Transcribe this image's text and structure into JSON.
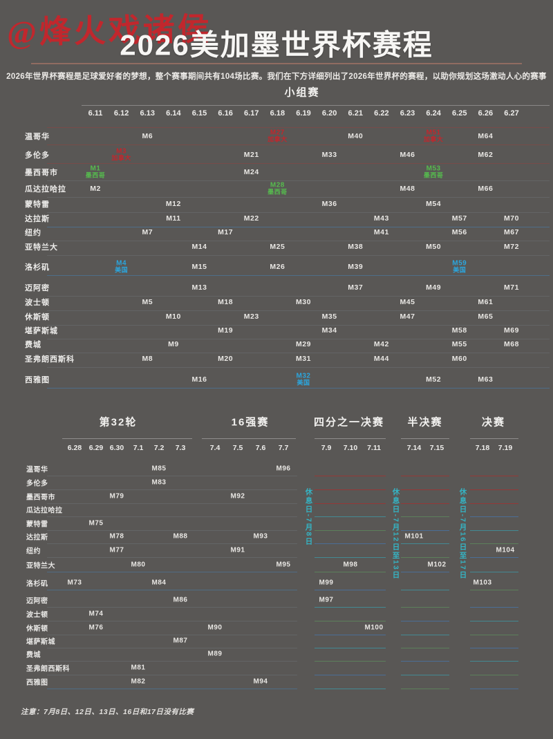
{
  "page": {
    "watermark": "@烽火戏诸侯",
    "title": "2026美加墨世界杯赛程",
    "subtitle": "2026年世界杯赛程是足球爱好者的梦想，整个赛事期间共有104场比赛。我们在下方详细列出了2026年世界杯的赛程，以助你规划这场激动人心的赛事",
    "footnote": "注意：7月8日、12日、13日、16日和17日没有比赛"
  },
  "colors": {
    "background": "#595755",
    "accent_red": "#c1272d",
    "host_green": "#56bb4e",
    "host_blue": "#2ba6de",
    "rest_teal": "#35b4c4",
    "text": "#eeedeb"
  },
  "chart_data": {
    "type": "table",
    "title": "2026美加墨世界杯赛程",
    "total_matches": 104,
    "host_legend": {
      "green": "墨西哥",
      "blue": "美国",
      "red": "加拿大"
    },
    "cities": [
      "温哥华",
      "多伦多",
      "墨西哥市",
      "瓜达拉哈拉",
      "蒙特雷",
      "达拉斯",
      "纽约",
      "亚特兰大",
      "洛杉矶",
      "迈阿密",
      "波士顿",
      "休斯顿",
      "堪萨斯城",
      "费城",
      "圣弗朗西斯科",
      "西雅图"
    ],
    "rest_days": [
      "休息日-7月8日",
      "休息日-7月12日至13日",
      "休息日-7月16日至17日"
    ],
    "stages": [
      {
        "name": "小组赛",
        "dates": [
          "6.11",
          "6.12",
          "6.13",
          "6.14",
          "6.15",
          "6.16",
          "6.17",
          "6.18",
          "6.19",
          "6.20",
          "6.21",
          "6.22",
          "6.23",
          "6.24",
          "6.25",
          "6.26",
          "6.27"
        ],
        "matches": [
          {
            "m": "M6",
            "city": "温哥华",
            "date": "6.13"
          },
          {
            "m": "M27",
            "city": "温哥华",
            "date": "6.18",
            "host": "加拿大",
            "hostColor": "red"
          },
          {
            "m": "M40",
            "city": "温哥华",
            "date": "6.21"
          },
          {
            "m": "M51",
            "city": "温哥华",
            "date": "6.24",
            "host": "加拿大",
            "hostColor": "red"
          },
          {
            "m": "M64",
            "city": "温哥华",
            "date": "6.26"
          },
          {
            "m": "M3",
            "city": "多伦多",
            "date": "6.12",
            "host": "加拿大",
            "hostColor": "red"
          },
          {
            "m": "M21",
            "city": "多伦多",
            "date": "6.17"
          },
          {
            "m": "M33",
            "city": "多伦多",
            "date": "6.20"
          },
          {
            "m": "M46",
            "city": "多伦多",
            "date": "6.23"
          },
          {
            "m": "M62",
            "city": "多伦多",
            "date": "6.26"
          },
          {
            "m": "M1",
            "city": "墨西哥市",
            "date": "6.11",
            "host": "墨西哥",
            "hostColor": "green"
          },
          {
            "m": "M24",
            "city": "墨西哥市",
            "date": "6.17"
          },
          {
            "m": "M53",
            "city": "墨西哥市",
            "date": "6.24",
            "host": "墨西哥",
            "hostColor": "green"
          },
          {
            "m": "M2",
            "city": "瓜达拉哈拉",
            "date": "6.11"
          },
          {
            "m": "M28",
            "city": "瓜达拉哈拉",
            "date": "6.18",
            "host": "墨西哥",
            "hostColor": "green"
          },
          {
            "m": "M48",
            "city": "瓜达拉哈拉",
            "date": "6.23"
          },
          {
            "m": "M66",
            "city": "瓜达拉哈拉",
            "date": "6.26"
          },
          {
            "m": "M12",
            "city": "蒙特雷",
            "date": "6.14"
          },
          {
            "m": "M36",
            "city": "蒙特雷",
            "date": "6.20"
          },
          {
            "m": "M54",
            "city": "蒙特雷",
            "date": "6.24"
          },
          {
            "m": "M11",
            "city": "达拉斯",
            "date": "6.14"
          },
          {
            "m": "M22",
            "city": "达拉斯",
            "date": "6.17"
          },
          {
            "m": "M43",
            "city": "达拉斯",
            "date": "6.22"
          },
          {
            "m": "M57",
            "city": "达拉斯",
            "date": "6.25"
          },
          {
            "m": "M70",
            "city": "达拉斯",
            "date": "6.27"
          },
          {
            "m": "M7",
            "city": "纽约",
            "date": "6.13"
          },
          {
            "m": "M17",
            "city": "纽约",
            "date": "6.16"
          },
          {
            "m": "M41",
            "city": "纽约",
            "date": "6.22"
          },
          {
            "m": "M56",
            "city": "纽约",
            "date": "6.25"
          },
          {
            "m": "M67",
            "city": "纽约",
            "date": "6.27"
          },
          {
            "m": "M14",
            "city": "亚特兰大",
            "date": "6.15"
          },
          {
            "m": "M25",
            "city": "亚特兰大",
            "date": "6.18"
          },
          {
            "m": "M38",
            "city": "亚特兰大",
            "date": "6.21"
          },
          {
            "m": "M50",
            "city": "亚特兰大",
            "date": "6.24"
          },
          {
            "m": "M72",
            "city": "亚特兰大",
            "date": "6.27"
          },
          {
            "m": "M4",
            "city": "洛杉矶",
            "date": "6.12",
            "host": "美国",
            "hostColor": "blue"
          },
          {
            "m": "M15",
            "city": "洛杉矶",
            "date": "6.15"
          },
          {
            "m": "M26",
            "city": "洛杉矶",
            "date": "6.18"
          },
          {
            "m": "M39",
            "city": "洛杉矶",
            "date": "6.21"
          },
          {
            "m": "M59",
            "city": "洛杉矶",
            "date": "6.25",
            "host": "美国",
            "hostColor": "blue"
          },
          {
            "m": "M13",
            "city": "迈阿密",
            "date": "6.15"
          },
          {
            "m": "M37",
            "city": "迈阿密",
            "date": "6.21"
          },
          {
            "m": "M49",
            "city": "迈阿密",
            "date": "6.24"
          },
          {
            "m": "M71",
            "city": "迈阿密",
            "date": "6.27"
          },
          {
            "m": "M5",
            "city": "波士顿",
            "date": "6.13"
          },
          {
            "m": "M18",
            "city": "波士顿",
            "date": "6.16"
          },
          {
            "m": "M30",
            "city": "波士顿",
            "date": "6.19"
          },
          {
            "m": "M45",
            "city": "波士顿",
            "date": "6.23"
          },
          {
            "m": "M61",
            "city": "波士顿",
            "date": "6.26"
          },
          {
            "m": "M10",
            "city": "休斯顿",
            "date": "6.14"
          },
          {
            "m": "M23",
            "city": "休斯顿",
            "date": "6.17"
          },
          {
            "m": "M35",
            "city": "休斯顿",
            "date": "6.20"
          },
          {
            "m": "M47",
            "city": "休斯顿",
            "date": "6.23"
          },
          {
            "m": "M65",
            "city": "休斯顿",
            "date": "6.26"
          },
          {
            "m": "M19",
            "city": "堪萨斯城",
            "date": "6.16"
          },
          {
            "m": "M34",
            "city": "堪萨斯城",
            "date": "6.20"
          },
          {
            "m": "M58",
            "city": "堪萨斯城",
            "date": "6.25"
          },
          {
            "m": "M69",
            "city": "堪萨斯城",
            "date": "6.27"
          },
          {
            "m": "M9",
            "city": "费城",
            "date": "6.14"
          },
          {
            "m": "M29",
            "city": "费城",
            "date": "6.19"
          },
          {
            "m": "M42",
            "city": "费城",
            "date": "6.22"
          },
          {
            "m": "M55",
            "city": "费城",
            "date": "6.25"
          },
          {
            "m": "M68",
            "city": "费城",
            "date": "6.27"
          },
          {
            "m": "M8",
            "city": "圣弗朗西斯科",
            "date": "6.13"
          },
          {
            "m": "M20",
            "city": "圣弗朗西斯科",
            "date": "6.16"
          },
          {
            "m": "M31",
            "city": "圣弗朗西斯科",
            "date": "6.19"
          },
          {
            "m": "M44",
            "city": "圣弗朗西斯科",
            "date": "6.22"
          },
          {
            "m": "M60",
            "city": "圣弗朗西斯科",
            "date": "6.25"
          },
          {
            "m": "M16",
            "city": "西雅图",
            "date": "6.15"
          },
          {
            "m": "M32",
            "city": "西雅图",
            "date": "6.19",
            "host": "美国",
            "hostColor": "blue"
          },
          {
            "m": "M52",
            "city": "西雅图",
            "date": "6.24"
          },
          {
            "m": "M63",
            "city": "西雅图",
            "date": "6.26"
          }
        ]
      },
      {
        "name": "第32轮",
        "dates": [
          "6.28",
          "6.29",
          "6.30",
          "7.1",
          "7.2",
          "7.3"
        ],
        "matches": [
          {
            "m": "M73",
            "city": "洛杉矶",
            "date": "6.28"
          },
          {
            "m": "M74",
            "city": "波士顿",
            "date": "6.29"
          },
          {
            "m": "M75",
            "city": "蒙特雷",
            "date": "6.29"
          },
          {
            "m": "M76",
            "city": "休斯顿",
            "date": "6.29"
          },
          {
            "m": "M77",
            "city": "纽约",
            "date": "6.30"
          },
          {
            "m": "M78",
            "city": "达拉斯",
            "date": "6.30"
          },
          {
            "m": "M79",
            "city": "墨西哥市",
            "date": "6.30"
          },
          {
            "m": "M80",
            "city": "亚特兰大",
            "date": "7.1"
          },
          {
            "m": "M81",
            "city": "圣弗朗西斯科",
            "date": "7.1"
          },
          {
            "m": "M82",
            "city": "西雅图",
            "date": "7.1"
          },
          {
            "m": "M83",
            "city": "多伦多",
            "date": "7.2"
          },
          {
            "m": "M84",
            "city": "洛杉矶",
            "date": "7.2"
          },
          {
            "m": "M85",
            "city": "温哥华",
            "date": "7.2"
          },
          {
            "m": "M86",
            "city": "迈阿密",
            "date": "7.3"
          },
          {
            "m": "M87",
            "city": "堪萨斯城",
            "date": "7.3"
          },
          {
            "m": "M88",
            "city": "达拉斯",
            "date": "7.3"
          }
        ]
      },
      {
        "name": "16强赛",
        "dates": [
          "7.4",
          "7.5",
          "7.6",
          "7.7"
        ],
        "matches": [
          {
            "m": "M89",
            "city": "费城",
            "date": "7.4"
          },
          {
            "m": "M90",
            "city": "休斯顿",
            "date": "7.4"
          },
          {
            "m": "M91",
            "city": "纽约",
            "date": "7.5"
          },
          {
            "m": "M92",
            "city": "墨西哥市",
            "date": "7.5"
          },
          {
            "m": "M93",
            "city": "达拉斯",
            "date": "7.6"
          },
          {
            "m": "M94",
            "city": "西雅图",
            "date": "7.6"
          },
          {
            "m": "M95",
            "city": "亚特兰大",
            "date": "7.7"
          },
          {
            "m": "M96",
            "city": "温哥华",
            "date": "7.7"
          }
        ]
      },
      {
        "name": "四分之一决赛",
        "dates": [
          "7.9",
          "7.10",
          "7.11"
        ],
        "matches": [
          {
            "m": "M97",
            "city": "迈阿密",
            "date": "7.9"
          },
          {
            "m": "M99",
            "city": "洛杉矶",
            "date": "7.9"
          },
          {
            "m": "M98",
            "city": "亚特兰大",
            "date": "7.10"
          },
          {
            "m": "M100",
            "city": "休斯顿",
            "date": "7.11"
          }
        ]
      },
      {
        "name": "半决赛",
        "dates": [
          "7.14",
          "7.15"
        ],
        "matches": [
          {
            "m": "M101",
            "city": "达拉斯",
            "date": "7.14"
          },
          {
            "m": "M102",
            "city": "亚特兰大",
            "date": "7.15"
          }
        ]
      },
      {
        "name": "决赛",
        "dates": [
          "7.18",
          "7.19"
        ],
        "matches": [
          {
            "m": "M103",
            "city": "洛杉矶",
            "date": "7.18"
          },
          {
            "m": "M104",
            "city": "纽约",
            "date": "7.19"
          }
        ]
      }
    ]
  }
}
